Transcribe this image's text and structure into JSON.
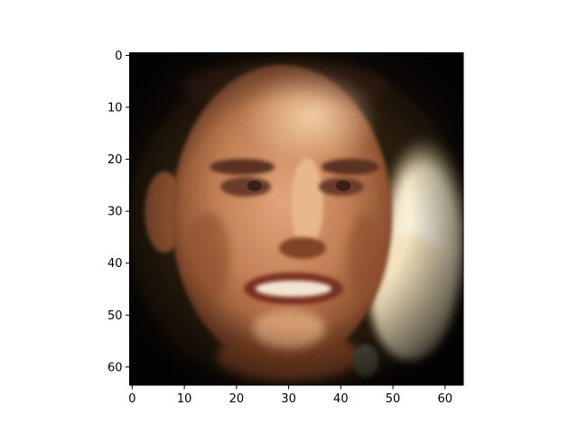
{
  "chart_data": {
    "type": "heatmap",
    "subtype": "image",
    "title": "",
    "xlabel": "",
    "ylabel": "",
    "xlim": [
      -0.5,
      63.5
    ],
    "ylim": [
      63.5,
      -0.5
    ],
    "y_inverted": true,
    "image_size": [
      64,
      64
    ],
    "grid": false,
    "legend": "none",
    "xticks": [
      0,
      10,
      20,
      30,
      40,
      50,
      60
    ],
    "yticks": [
      0,
      10,
      20,
      30,
      40,
      50,
      60
    ],
    "xtick_labels": [
      "0",
      "10",
      "20",
      "30",
      "40",
      "50",
      "60"
    ],
    "ytick_labels": [
      "0",
      "10",
      "20",
      "30",
      "40",
      "50",
      "60"
    ],
    "content": "low-resolution pixelated photo of a smiling man's face centered on a dark, vignetted background with a bright cream patch on the right side",
    "colors": {
      "background": "#140f0a",
      "skin": "#c98a60",
      "skin_highlight": "#f0c49a",
      "shadow": "#6e3a1e",
      "bright_patch": "#fbf2d8",
      "hair": "#3a2416"
    }
  }
}
